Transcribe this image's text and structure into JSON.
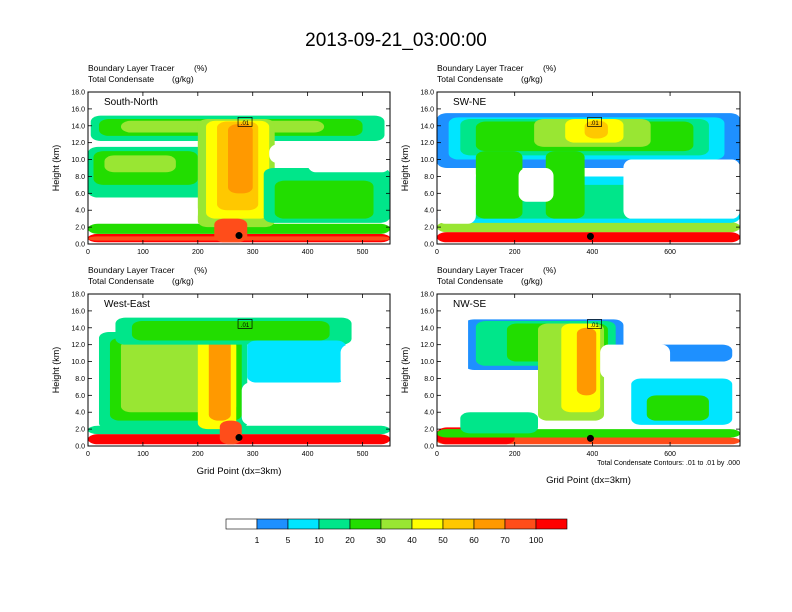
{
  "title": "2013-09-21_03:00:00",
  "footnote": "Total Condensate Contours: .01 to .01 by .000",
  "colorbar": {
    "colors": [
      "#ffffff",
      "#1e90ff",
      "#00e5ff",
      "#00e68a",
      "#22dd00",
      "#99e633",
      "#ffff00",
      "#ffc800",
      "#ff9900",
      "#ff4d1a",
      "#ff0000"
    ],
    "labels": [
      "1",
      "5",
      "10",
      "20",
      "30",
      "40",
      "50",
      "60",
      "70",
      "100"
    ]
  },
  "contour_label": ".01",
  "chart_data": [
    {
      "type": "heatmap",
      "panel": "South-North",
      "subtitle_left": "Boundary Layer Tracer",
      "subtitle_unit": "(%)",
      "subtitle2_left": "Total Condensate",
      "subtitle2_unit": "(g/kg)",
      "ylabel": "Height (km)",
      "xlabel": "",
      "ylim": [
        0,
        18
      ],
      "xlim": [
        0,
        550
      ],
      "yticks": [
        "0.0",
        "2.0",
        "4.0",
        "6.0",
        "8.0",
        "10.0",
        "12.0",
        "14.0",
        "16.0",
        "18.0"
      ],
      "xticks": [
        0,
        100,
        200,
        300,
        400,
        500
      ],
      "blobs": [
        {
          "x": [
            0,
            550
          ],
          "y": [
            0.2,
            1.2
          ],
          "c": 10
        },
        {
          "x": [
            0,
            550
          ],
          "y": [
            0.4,
            0.9
          ],
          "c": 9
        },
        {
          "x": [
            0,
            550
          ],
          "y": [
            1.2,
            2.4
          ],
          "c": 4
        },
        {
          "x": [
            5,
            540
          ],
          "y": [
            12.2,
            15.2
          ],
          "c": 3
        },
        {
          "x": [
            20,
            500
          ],
          "y": [
            12.8,
            14.8
          ],
          "c": 4
        },
        {
          "x": [
            60,
            430
          ],
          "y": [
            13.2,
            14.6
          ],
          "c": 5
        },
        {
          "x": [
            0,
            230
          ],
          "y": [
            5.5,
            11.5
          ],
          "c": 3
        },
        {
          "x": [
            10,
            200
          ],
          "y": [
            7,
            11
          ],
          "c": 4
        },
        {
          "x": [
            30,
            160
          ],
          "y": [
            8.5,
            10.5
          ],
          "c": 5
        },
        {
          "x": [
            200,
            340
          ],
          "y": [
            2,
            14.8
          ],
          "c": 5
        },
        {
          "x": [
            215,
            330
          ],
          "y": [
            3,
            14.6
          ],
          "c": 6
        },
        {
          "x": [
            235,
            310
          ],
          "y": [
            4,
            14.5
          ],
          "c": 7
        },
        {
          "x": [
            255,
            300
          ],
          "y": [
            6,
            14.2
          ],
          "c": 8
        },
        {
          "x": [
            320,
            550
          ],
          "y": [
            2.5,
            9
          ],
          "c": 3
        },
        {
          "x": [
            340,
            520
          ],
          "y": [
            3,
            7.5
          ],
          "c": 4
        },
        {
          "x": [
            230,
            290
          ],
          "y": [
            0.2,
            3
          ],
          "c": 9
        }
      ],
      "voids": [
        {
          "x": [
            20,
            200
          ],
          "y": [
            2.6,
            5
          ],
          "c": 0
        },
        {
          "x": [
            330,
            550
          ],
          "y": [
            9.6,
            11.8
          ],
          "c": 0
        },
        {
          "x": [
            400,
            550
          ],
          "y": [
            8.5,
            12
          ],
          "c": 0
        }
      ],
      "marker": {
        "x": 275,
        "y": 1.0
      }
    },
    {
      "type": "heatmap",
      "panel": "SW-NE",
      "subtitle_left": "Boundary Layer Tracer",
      "subtitle_unit": "(%)",
      "subtitle2_left": "Total Condensate",
      "subtitle2_unit": "(g/kg)",
      "ylabel": "Height (km)",
      "xlabel": "",
      "ylim": [
        0,
        18
      ],
      "xlim": [
        0,
        780
      ],
      "yticks": [
        "0.0",
        "2.0",
        "4.0",
        "6.0",
        "8.0",
        "10.0",
        "12.0",
        "14.0",
        "16.0",
        "18.0"
      ],
      "xticks": [
        0,
        200,
        400,
        600
      ],
      "blobs": [
        {
          "x": [
            0,
            780
          ],
          "y": [
            0.2,
            1.4
          ],
          "c": 10
        },
        {
          "x": [
            0,
            780
          ],
          "y": [
            1.4,
            2.6
          ],
          "c": 5
        },
        {
          "x": [
            0,
            780
          ],
          "y": [
            9,
            15.5
          ],
          "c": 1
        },
        {
          "x": [
            30,
            740
          ],
          "y": [
            10,
            15
          ],
          "c": 2
        },
        {
          "x": [
            60,
            700
          ],
          "y": [
            10.5,
            14.8
          ],
          "c": 3
        },
        {
          "x": [
            100,
            660
          ],
          "y": [
            11,
            14.5
          ],
          "c": 4
        },
        {
          "x": [
            250,
            550
          ],
          "y": [
            11.5,
            14.8
          ],
          "c": 5
        },
        {
          "x": [
            330,
            480
          ],
          "y": [
            12,
            14.8
          ],
          "c": 6
        },
        {
          "x": [
            380,
            440
          ],
          "y": [
            12.5,
            14.6
          ],
          "c": 7
        },
        {
          "x": [
            0,
            780
          ],
          "y": [
            2.5,
            8
          ],
          "c": 2
        },
        {
          "x": [
            40,
            700
          ],
          "y": [
            3,
            7
          ],
          "c": 3
        },
        {
          "x": [
            100,
            220
          ],
          "y": [
            3,
            11
          ],
          "c": 4
        },
        {
          "x": [
            280,
            380
          ],
          "y": [
            3,
            11
          ],
          "c": 4
        }
      ],
      "voids": [
        {
          "x": [
            0,
            100
          ],
          "y": [
            2.4,
            9
          ],
          "c": 0
        },
        {
          "x": [
            480,
            780
          ],
          "y": [
            3,
            10
          ],
          "c": 0
        },
        {
          "x": [
            210,
            300
          ],
          "y": [
            5,
            9
          ],
          "c": 0
        }
      ],
      "marker": {
        "x": 395,
        "y": 0.9
      }
    },
    {
      "type": "heatmap",
      "panel": "West-East",
      "subtitle_left": "Boundary Layer Tracer",
      "subtitle_unit": "(%)",
      "subtitle2_left": "Total Condensate",
      "subtitle2_unit": "(g/kg)",
      "ylabel": "Height (km)",
      "xlabel": "Grid Point (dx=3km)",
      "ylim": [
        0,
        18
      ],
      "xlim": [
        0,
        550
      ],
      "yticks": [
        "0.0",
        "2.0",
        "4.0",
        "6.0",
        "8.0",
        "10.0",
        "12.0",
        "14.0",
        "16.0",
        "18.0"
      ],
      "xticks": [
        0,
        100,
        200,
        300,
        400,
        500
      ],
      "blobs": [
        {
          "x": [
            0,
            550
          ],
          "y": [
            0.2,
            1.4
          ],
          "c": 10
        },
        {
          "x": [
            0,
            550
          ],
          "y": [
            1.4,
            2.4
          ],
          "c": 3
        },
        {
          "x": [
            20,
            290
          ],
          "y": [
            2,
            13.5
          ],
          "c": 3
        },
        {
          "x": [
            40,
            280
          ],
          "y": [
            3,
            12.8
          ],
          "c": 4
        },
        {
          "x": [
            60,
            270
          ],
          "y": [
            4,
            12.5
          ],
          "c": 5
        },
        {
          "x": [
            200,
            270
          ],
          "y": [
            2,
            14.5
          ],
          "c": 6
        },
        {
          "x": [
            220,
            260
          ],
          "y": [
            3,
            14
          ],
          "c": 8
        },
        {
          "x": [
            50,
            480
          ],
          "y": [
            12,
            15.2
          ],
          "c": 3
        },
        {
          "x": [
            80,
            440
          ],
          "y": [
            12.5,
            14.8
          ],
          "c": 4
        },
        {
          "x": [
            290,
            470
          ],
          "y": [
            7.5,
            12.5
          ],
          "c": 2
        },
        {
          "x": [
            240,
            280
          ],
          "y": [
            0.2,
            3
          ],
          "c": 9
        }
      ],
      "voids": [
        {
          "x": [
            280,
            550
          ],
          "y": [
            2.5,
            7.5
          ],
          "c": 0
        },
        {
          "x": [
            460,
            550
          ],
          "y": [
            7,
            12
          ],
          "c": 0
        }
      ],
      "marker": {
        "x": 275,
        "y": 1.0
      }
    },
    {
      "type": "heatmap",
      "panel": "NW-SE",
      "subtitle_left": "Boundary Layer Tracer",
      "subtitle_unit": "(%)",
      "subtitle2_left": "Total Condensate",
      "subtitle2_unit": "(g/kg)",
      "ylabel": "Height (km)",
      "xlabel": "Grid Point (dx=3km)",
      "ylim": [
        0,
        18
      ],
      "xlim": [
        0,
        780
      ],
      "yticks": [
        "0.0",
        "2.0",
        "4.0",
        "6.0",
        "8.0",
        "10.0",
        "12.0",
        "14.0",
        "16.0",
        "18.0"
      ],
      "xticks": [
        0,
        200,
        400,
        600
      ],
      "blobs": [
        {
          "x": [
            0,
            780
          ],
          "y": [
            0.2,
            1.0
          ],
          "c": 9
        },
        {
          "x": [
            0,
            200
          ],
          "y": [
            0.2,
            2.2
          ],
          "c": 10
        },
        {
          "x": [
            0,
            780
          ],
          "y": [
            1.0,
            2.0
          ],
          "c": 4
        },
        {
          "x": [
            60,
            260
          ],
          "y": [
            1.5,
            4
          ],
          "c": 3
        },
        {
          "x": [
            70,
            480
          ],
          "y": [
            9,
            15
          ],
          "c": 1
        },
        {
          "x": [
            100,
            460
          ],
          "y": [
            9.5,
            14.8
          ],
          "c": 3
        },
        {
          "x": [
            180,
            440
          ],
          "y": [
            10,
            14.5
          ],
          "c": 4
        },
        {
          "x": [
            260,
            430
          ],
          "y": [
            3,
            14.5
          ],
          "c": 5
        },
        {
          "x": [
            320,
            420
          ],
          "y": [
            4,
            14.5
          ],
          "c": 6
        },
        {
          "x": [
            360,
            410
          ],
          "y": [
            6,
            14
          ],
          "c": 8
        },
        {
          "x": [
            500,
            760
          ],
          "y": [
            2.5,
            8
          ],
          "c": 2
        },
        {
          "x": [
            540,
            700
          ],
          "y": [
            3,
            6
          ],
          "c": 4
        },
        {
          "x": [
            560,
            760
          ],
          "y": [
            10,
            12
          ],
          "c": 1
        }
      ],
      "voids": [
        {
          "x": [
            0,
            80
          ],
          "y": [
            4,
            18
          ],
          "c": 0
        },
        {
          "x": [
            420,
            600
          ],
          "y": [
            8,
            12
          ],
          "c": 0
        }
      ],
      "marker": {
        "x": 395,
        "y": 0.9
      }
    }
  ]
}
